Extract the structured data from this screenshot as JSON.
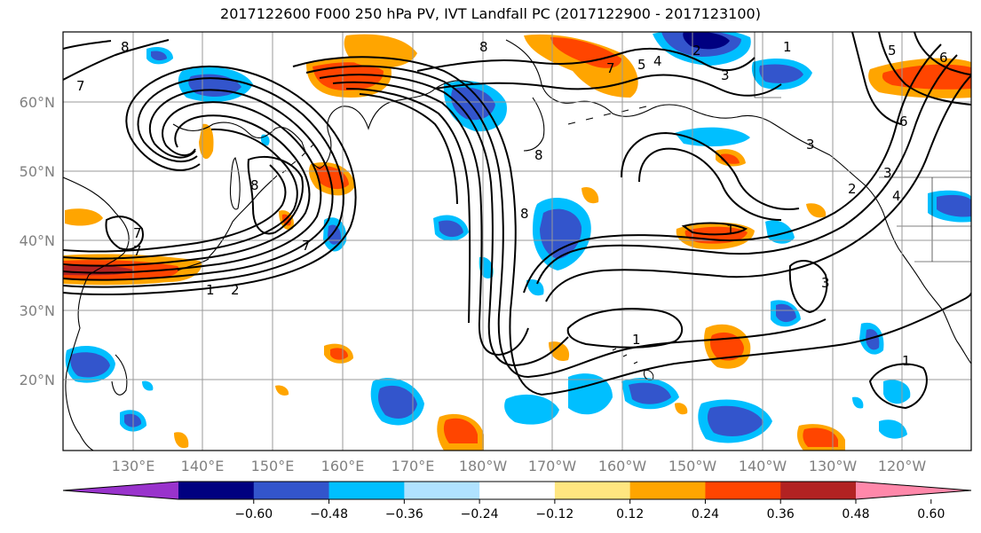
{
  "title": "2017122600 F000 250 hPa PV, IVT Landfall PC (2017122900 - 2017123100)",
  "lat_labels": [
    "60°N",
    "50°N",
    "40°N",
    "30°N",
    "20°N"
  ],
  "lon_labels": [
    "130°E",
    "140°E",
    "150°E",
    "160°E",
    "170°E",
    "180°W",
    "170°W",
    "160°W",
    "150°W",
    "140°W",
    "130°W",
    "120°W"
  ],
  "colorbar": {
    "ticks": [
      "−0.60",
      "−0.48",
      "−0.36",
      "−0.24",
      "−0.12",
      "0.12",
      "0.24",
      "0.36",
      "0.48",
      "0.60"
    ],
    "colors": [
      "#9933cc",
      "#000080",
      "#3355cc",
      "#00bfff",
      "#b0e2ff",
      "#ffffff",
      "#ffe680",
      "#ffa500",
      "#ff4500",
      "#b22222",
      "#ff88aa"
    ]
  },
  "contour_labels": [
    "8",
    "7",
    "7",
    "7",
    "8",
    "1",
    "2",
    "8",
    "8",
    "8",
    "7",
    "7",
    "1",
    "5",
    "4",
    "3",
    "2",
    "3",
    "6",
    "1",
    "3",
    "3",
    "4",
    "2",
    "1",
    "1",
    "5",
    "6"
  ]
}
